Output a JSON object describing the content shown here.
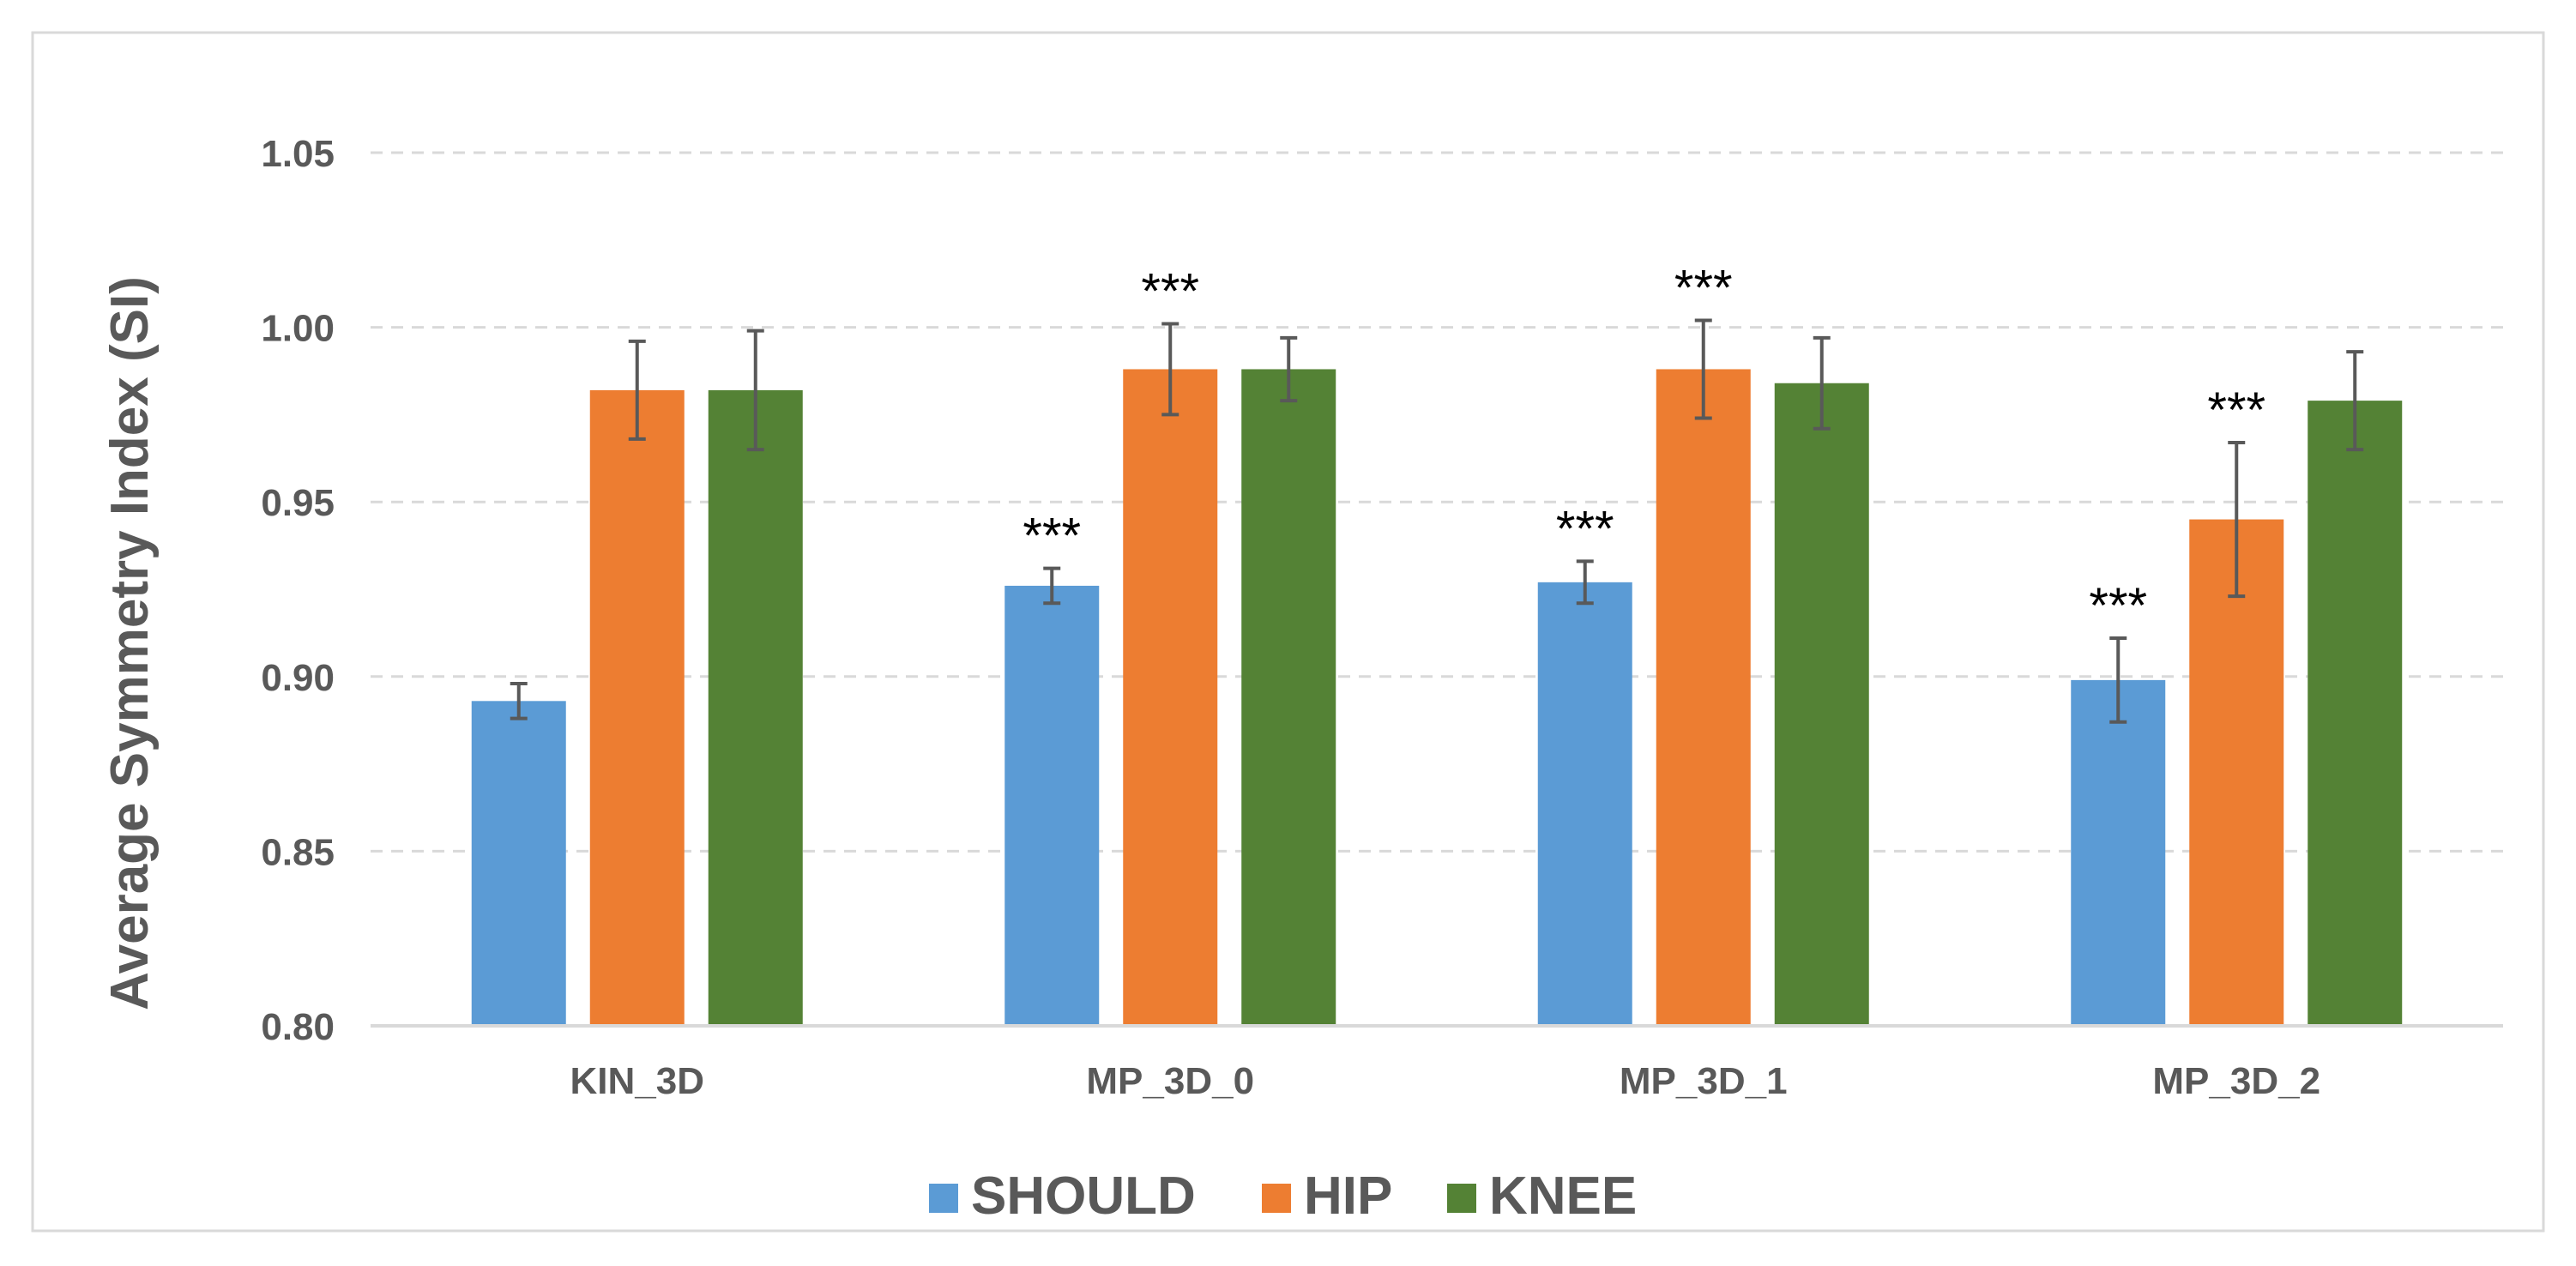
{
  "chart_data": {
    "type": "bar",
    "title": "",
    "xlabel": "",
    "ylabel": "Average Symmetry Index (SI)",
    "categories": [
      "KIN_3D",
      "MP_3D_0",
      "MP_3D_1",
      "MP_3D_2"
    ],
    "ylim": [
      0.8,
      1.05
    ],
    "yticks": [
      "0.80",
      "0.85",
      "0.90",
      "0.95",
      "1.00",
      "1.05"
    ],
    "grid": true,
    "legend_position": "bottom",
    "series": [
      {
        "name": "SHOULD",
        "color": "#5B9BD5",
        "values": [
          0.893,
          0.926,
          0.927,
          0.899
        ],
        "errors": [
          0.005,
          0.005,
          0.006,
          0.012
        ],
        "annotations": [
          "",
          "***",
          "***",
          "***"
        ]
      },
      {
        "name": "HIP",
        "color": "#ED7D31",
        "values": [
          0.982,
          0.988,
          0.988,
          0.945
        ],
        "errors": [
          0.014,
          0.013,
          0.014,
          0.022
        ],
        "annotations": [
          "",
          "***",
          "***",
          "***"
        ]
      },
      {
        "name": "KNEE",
        "color": "#548235",
        "values": [
          0.982,
          0.988,
          0.984,
          0.979
        ],
        "errors": [
          0.017,
          0.009,
          0.013,
          0.014
        ],
        "annotations": [
          "",
          "",
          "",
          ""
        ]
      }
    ]
  }
}
